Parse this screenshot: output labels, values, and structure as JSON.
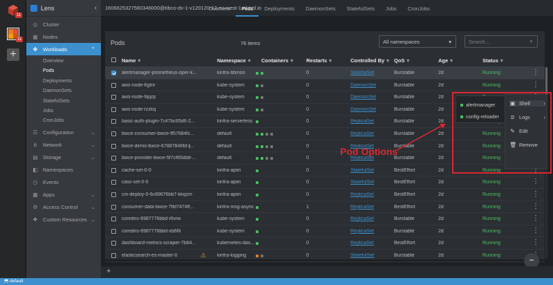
{
  "clusters": [
    {
      "badge": "11",
      "color": "#c0392b"
    },
    {
      "badge": "11",
      "color": "#e67e22"
    }
  ],
  "add_cluster_glyph": "+",
  "app": {
    "title": "Lens",
    "collapse_glyph": "‹"
  },
  "sidebar": {
    "items": [
      {
        "label": "Cluster",
        "icon": "cluster-icon",
        "glyph": "◎"
      },
      {
        "label": "Nodes",
        "icon": "nodes-icon",
        "glyph": "▦"
      },
      {
        "label": "Workloads",
        "icon": "workloads-icon",
        "glyph": "✥",
        "active": true,
        "chevron": "⌃"
      },
      {
        "label": "Configuration",
        "icon": "configuration-icon",
        "glyph": "☰",
        "chevron": "⌄"
      },
      {
        "label": "Network",
        "icon": "network-icon",
        "glyph": "⋔",
        "chevron": "⌄"
      },
      {
        "label": "Storage",
        "icon": "storage-icon",
        "glyph": "▤",
        "chevron": "⌄"
      },
      {
        "label": "Namespaces",
        "icon": "namespaces-icon",
        "glyph": "◧"
      },
      {
        "label": "Events",
        "icon": "events-icon",
        "glyph": "◷"
      },
      {
        "label": "Apps",
        "icon": "apps-icon",
        "glyph": "▦",
        "chevron": "⌄"
      },
      {
        "label": "Access Control",
        "icon": "access-control-icon",
        "glyph": "⚙",
        "chevron": "⌄"
      },
      {
        "label": "Custom Resources",
        "icon": "custom-resources-icon",
        "glyph": "✚",
        "chevron": "⌄"
      }
    ],
    "workloads_sub": [
      "Overview",
      "Pods",
      "Deployments",
      "DaemonSets",
      "StatefulSets",
      "Jobs",
      "CronJobs"
    ]
  },
  "topbar": {
    "cluster": "1606625327560346000@tibco-dx-1-v120120-12.eu-west-1.eksctl.io",
    "tabs": [
      "Overview",
      "Pods",
      "Deployments",
      "DaemonSets",
      "StatefulSets",
      "Jobs",
      "CronJobs"
    ]
  },
  "panel": {
    "title": "Pods",
    "count": "76 items",
    "namespace_select": "All namespaces",
    "namespace_chevron": "▾",
    "search_placeholder": "Search...",
    "search_glyph": "⌕",
    "menu_glyph": "⋮"
  },
  "columns": [
    "Name",
    "Namespace",
    "Containers",
    "Restarts",
    "Controlled By",
    "QoS",
    "Age",
    "Status"
  ],
  "sort_glyph": "▾",
  "rows": [
    {
      "name": "alertmanager-prometheus-oper-k...",
      "ns": "kinfra-tibmon",
      "dots": [
        "#48c060",
        "#48c060"
      ],
      "restarts": "0",
      "ctrl": "StatefulSet",
      "qos": "Burstable",
      "age": "2d",
      "status": "Running",
      "checked": true
    },
    {
      "name": "aws-node-6gtnr",
      "ns": "kube-system",
      "dots": [
        "#48c060",
        "#777"
      ],
      "restarts": "0",
      "ctrl": "DaemonSet",
      "qos": "Burstable",
      "age": "2d",
      "status": "Running"
    },
    {
      "name": "aws-node-9pjzp",
      "ns": "kube-system",
      "dots": [
        "#48c060",
        "#777"
      ],
      "restarts": "0",
      "ctrl": "DaemonSet",
      "qos": "Burstable",
      "age": "2d",
      "status": "Running"
    },
    {
      "name": "aws-node-rzzkq",
      "ns": "kube-system",
      "dots": [
        "#48c060",
        "#777"
      ],
      "restarts": "0",
      "ctrl": "DaemonSet",
      "qos": "Burstable",
      "age": "2d",
      "status": "Running"
    },
    {
      "name": "basic-auth-plugin-7c47bc65d6-2...",
      "ns": "kinfra-serverless",
      "dots": [
        "#48c060"
      ],
      "restarts": "0",
      "ctrl": "ReplicaSet",
      "qos": "Burstable",
      "age": "2d",
      "status": "Running"
    },
    {
      "name": "bwce-consumer-bwce-ff57684fc...",
      "ns": "default",
      "dots": [
        "#48c060",
        "#48c060",
        "#777",
        "#777"
      ],
      "restarts": "0",
      "ctrl": "ReplicaSet",
      "qos": "Burstable",
      "age": "2d",
      "status": "Running"
    },
    {
      "name": "bwce-demo-bwce-67887846fd-lj...",
      "ns": "default",
      "dots": [
        "#48c060",
        "#48c060",
        "#777",
        "#777"
      ],
      "restarts": "0",
      "ctrl": "ReplicaSet",
      "qos": "Burstable",
      "age": "2d",
      "status": "Running"
    },
    {
      "name": "bwce-provider-bwce-5f7cf65ddd-...",
      "ns": "default",
      "dots": [
        "#48c060",
        "#48c060",
        "#777",
        "#777"
      ],
      "restarts": "0",
      "ctrl": "ReplicaSet",
      "qos": "Burstable",
      "age": "2d",
      "status": "Running"
    },
    {
      "name": "cache-set-0-0",
      "ns": "kinfra-apim",
      "dots": [
        "#48c060"
      ],
      "restarts": "0",
      "ctrl": "StatefulSet",
      "qos": "BestEffort",
      "age": "2d",
      "status": "Running"
    },
    {
      "name": "cass-set-0-0",
      "ns": "kinfra-apim",
      "dots": [
        "#48c060"
      ],
      "restarts": "0",
      "ctrl": "StatefulSet",
      "qos": "BestEffort",
      "age": "2d",
      "status": "Running"
    },
    {
      "name": "cm-deploy-0-6c89676bb7-kkqzm",
      "ns": "kinfra-apim",
      "dots": [
        "#48c060"
      ],
      "restarts": "0",
      "ctrl": "ReplicaSet",
      "qos": "BestEffort",
      "age": "2d",
      "status": "Running"
    },
    {
      "name": "consumer-data-bwce-7fbf7474ff...",
      "ns": "kinfra-msg-async",
      "dots": [
        "#48c060"
      ],
      "restarts": "1",
      "ctrl": "ReplicaSet",
      "qos": "BestEffort",
      "age": "2d",
      "status": "Running"
    },
    {
      "name": "coredns-6987776bbd-r6vrw",
      "ns": "kube-system",
      "dots": [
        "#48c060"
      ],
      "restarts": "0",
      "ctrl": "ReplicaSet",
      "qos": "Burstable",
      "age": "2d",
      "status": "Running"
    },
    {
      "name": "coredns-6987776bbd-xb66t",
      "ns": "kube-system",
      "dots": [
        "#48c060"
      ],
      "restarts": "0",
      "ctrl": "ReplicaSet",
      "qos": "Burstable",
      "age": "2d",
      "status": "Running"
    },
    {
      "name": "dashboard-metrics-scraper-7b64...",
      "ns": "kubernetes-das...",
      "dots": [
        "#48c060"
      ],
      "restarts": "0",
      "ctrl": "ReplicaSet",
      "qos": "BestEffort",
      "age": "2d",
      "status": "Running"
    },
    {
      "name": "elasticsearch-es-master-0",
      "ns": "kinfra-logging",
      "dots": [
        "#e67e22",
        "#777"
      ],
      "restarts": "0",
      "ctrl": "StatefulSet",
      "qos": "Burstable",
      "age": "2d",
      "status": "Running",
      "warning": true
    }
  ],
  "warning_glyph": "⚠",
  "popup": {
    "containers": [
      "alertmanager",
      "config-reloader"
    ],
    "menu": [
      {
        "label": "Shell",
        "icon": "terminal-icon",
        "glyph": "▣",
        "chevron": "›"
      },
      {
        "label": "Logs",
        "icon": "logs-icon",
        "glyph": "≣",
        "chevron": "›"
      },
      {
        "label": "Edit",
        "icon": "edit-icon",
        "glyph": "✎"
      },
      {
        "label": "Remove",
        "icon": "trash-icon",
        "glyph": "🗑"
      }
    ]
  },
  "annotation": "Pod Options",
  "fab_glyph": "−",
  "bottom_add_glyph": "+",
  "statusbar": {
    "text": "default",
    "glyph": "⬒"
  }
}
